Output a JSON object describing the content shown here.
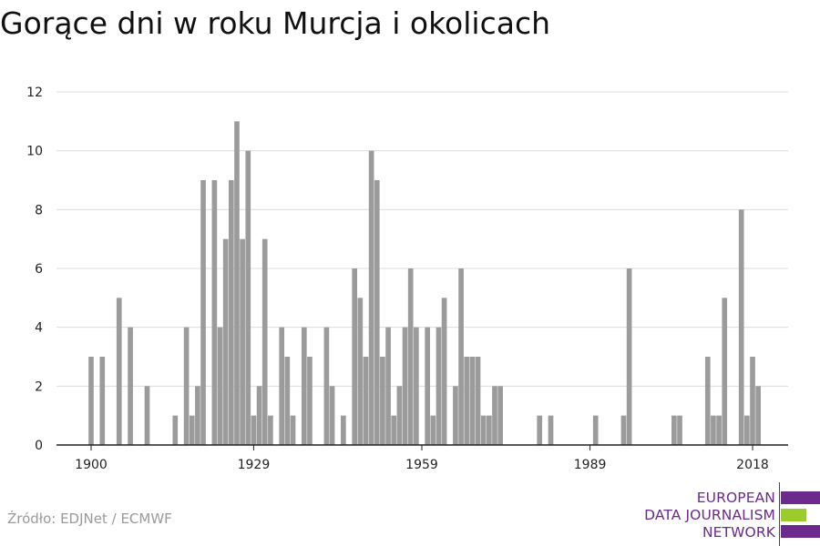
{
  "title": "Gorące dni w roku Murcja i okolicach",
  "source": "Źródło: EDJNet / ECMWF",
  "logo": {
    "lines": [
      "EUROPEAN",
      "DATA JOURNALISM",
      "NETWORK"
    ],
    "text_color": "#6b2a8c",
    "bar_colors": [
      "#6b2a8c",
      "#9ccc2c",
      "#6b2a8c"
    ]
  },
  "chart_data": {
    "type": "bar",
    "title": "Gorące dni w roku Murcja i okolicach",
    "xlabel": "",
    "ylabel": "",
    "xlim": [
      1900,
      2018
    ],
    "ylim": [
      0,
      12
    ],
    "x_ticks": [
      1900,
      1929,
      1959,
      1989,
      2018
    ],
    "y_ticks": [
      0,
      2,
      4,
      6,
      8,
      10,
      12
    ],
    "grid": true,
    "bar_color": "#9b9b9b",
    "series": [
      {
        "x": [
          1900,
          1902,
          1905,
          1907,
          1910,
          1915,
          1917,
          1918,
          1919,
          1920,
          1922,
          1923,
          1924,
          1925,
          1926,
          1927,
          1928,
          1929,
          1930,
          1931,
          1932,
          1934,
          1935,
          1936,
          1938,
          1939,
          1942,
          1943,
          1945,
          1947,
          1948,
          1949,
          1950,
          1951,
          1952,
          1953,
          1954,
          1955,
          1956,
          1957,
          1958,
          1960,
          1961,
          1962,
          1963,
          1965,
          1966,
          1967,
          1968,
          1969,
          1970,
          1971,
          1972,
          1973,
          1980,
          1982,
          1990,
          1995,
          1996,
          2004,
          2005,
          2010,
          2011,
          2012,
          2013,
          2016,
          2017,
          2018,
          2019
        ],
        "values": [
          3,
          3,
          5,
          4,
          2,
          1,
          4,
          1,
          2,
          9,
          9,
          4,
          7,
          9,
          11,
          7,
          10,
          1,
          2,
          7,
          1,
          4,
          3,
          1,
          4,
          3,
          4,
          2,
          1,
          6,
          5,
          3,
          10,
          9,
          3,
          4,
          1,
          2,
          4,
          6,
          4,
          4,
          1,
          4,
          5,
          2,
          6,
          3,
          3,
          3,
          1,
          1,
          2,
          2,
          1,
          1,
          1,
          1,
          6,
          1,
          1,
          3,
          1,
          1,
          5,
          8,
          1,
          3,
          2
        ]
      }
    ]
  }
}
